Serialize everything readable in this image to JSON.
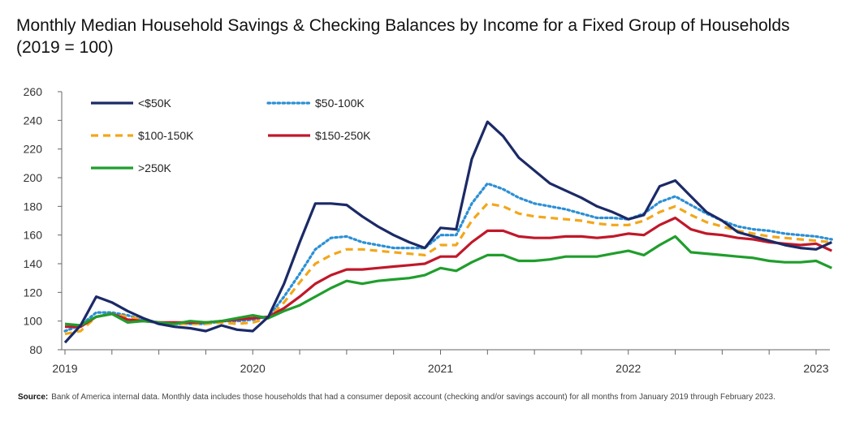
{
  "title": "Monthly Median Household Savings & Checking Balances by Income for a Fixed Group of Households (2019 = 100)",
  "footer": {
    "source_label": "Source:",
    "source_text": "Bank of America internal data. Monthly data includes those households that had a consumer deposit account (checking and/or savings account) for all months from January 2019 through February 2023."
  },
  "chart_data": {
    "type": "line",
    "ylim": [
      80,
      260
    ],
    "y_ticks": [
      80,
      100,
      120,
      140,
      160,
      180,
      200,
      220,
      240,
      260
    ],
    "x_ticks": [
      {
        "label": "2019",
        "month_index": 0
      },
      {
        "label": "2020",
        "month_index": 12
      },
      {
        "label": "2021",
        "month_index": 24
      },
      {
        "label": "2022",
        "month_index": 36
      },
      {
        "label": "2023",
        "month_index": 48
      }
    ],
    "x_start": "2019-01",
    "x_end": "2023-02",
    "legend_position": "top-left",
    "series": [
      {
        "name": "<$50K",
        "color": "#1b2a66",
        "dash": "solid",
        "values": [
          85,
          97,
          117,
          113,
          107,
          102,
          98,
          96,
          95,
          93,
          97,
          94,
          93,
          103,
          126,
          155,
          182,
          182,
          181,
          173,
          166,
          160,
          155,
          151,
          165,
          164,
          213,
          239,
          229,
          214,
          205,
          196,
          191,
          186,
          180,
          176,
          171,
          174,
          194,
          198,
          187,
          176,
          170,
          162,
          159,
          156,
          153,
          151,
          150,
          155
        ]
      },
      {
        "name": "$50-100K",
        "color": "#2b8fd6",
        "dash": "dotted",
        "values": [
          93,
          97,
          106,
          106,
          104,
          101,
          99,
          98,
          98,
          98,
          100,
          100,
          101,
          103,
          117,
          133,
          150,
          158,
          159,
          155,
          153,
          151,
          151,
          151,
          160,
          160,
          182,
          196,
          192,
          186,
          182,
          180,
          178,
          175,
          172,
          172,
          171,
          175,
          183,
          187,
          181,
          175,
          170,
          166,
          164,
          163,
          161,
          160,
          159,
          157
        ]
      },
      {
        "name": "$100-150K",
        "color": "#f2a71b",
        "dash": "dashed",
        "values": [
          91,
          93,
          103,
          105,
          103,
          101,
          99,
          98,
          98,
          98,
          99,
          98,
          99,
          102,
          113,
          127,
          140,
          146,
          150,
          150,
          149,
          148,
          147,
          146,
          153,
          153,
          170,
          182,
          180,
          175,
          173,
          172,
          171,
          170,
          168,
          167,
          167,
          170,
          176,
          180,
          174,
          169,
          166,
          163,
          161,
          159,
          158,
          157,
          156,
          155
        ]
      },
      {
        "name": "$150-250K",
        "color": "#c0182a",
        "dash": "solid",
        "values": [
          96,
          96,
          103,
          105,
          101,
          100,
          99,
          99,
          99,
          99,
          100,
          101,
          102,
          103,
          109,
          117,
          126,
          132,
          136,
          136,
          137,
          138,
          139,
          140,
          145,
          145,
          155,
          163,
          163,
          159,
          158,
          158,
          159,
          159,
          158,
          159,
          161,
          160,
          167,
          172,
          164,
          161,
          160,
          158,
          157,
          155,
          154,
          153,
          154,
          149
        ]
      },
      {
        "name": ">250K",
        "color": "#1f9e2c",
        "dash": "solid",
        "values": [
          98,
          97,
          103,
          105,
          99,
          100,
          99,
          98,
          100,
          99,
          100,
          102,
          104,
          102,
          107,
          111,
          117,
          123,
          128,
          126,
          128,
          129,
          130,
          132,
          137,
          135,
          141,
          146,
          146,
          142,
          142,
          143,
          145,
          145,
          145,
          147,
          149,
          146,
          153,
          159,
          148,
          147,
          146,
          145,
          144,
          142,
          141,
          141,
          142,
          137
        ]
      }
    ]
  }
}
